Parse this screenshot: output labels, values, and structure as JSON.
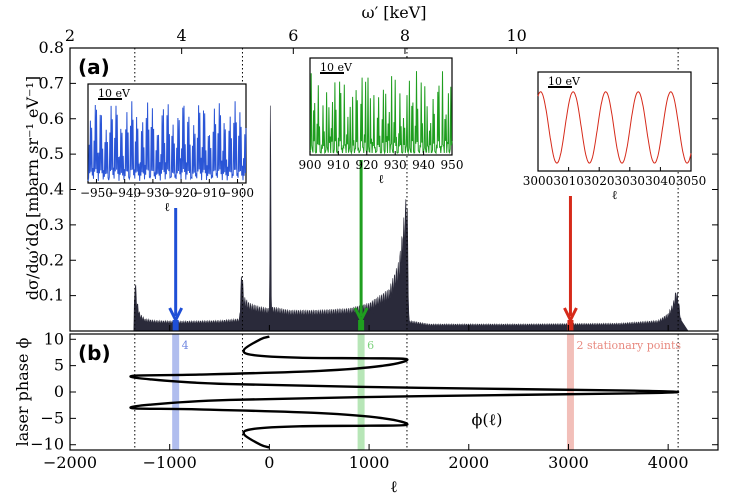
{
  "chart_data": {
    "type": "line",
    "panels": [
      {
        "label": "(a)",
        "xlim": [
          -2000,
          4500
        ],
        "ylim": [
          0,
          0.8
        ],
        "yticks": [
          0.1,
          0.2,
          0.3,
          0.4,
          0.5,
          0.6,
          0.7,
          0.8
        ],
        "ylabel": "dσ/dω′dΩ [mbarn sr⁻¹ eV⁻¹]",
        "xlabel_top": "ω′ [keV]",
        "top_ticks": [
          2,
          4,
          6,
          8,
          10
        ],
        "top_ticks_at_l": [
          -2000,
          -880,
          240,
          1360,
          2480
        ],
        "vertical_dotted_lines": [
          -1350,
          -270,
          1380,
          4100
        ],
        "spectrum_envelope": [
          [
            -1360,
            0
          ],
          [
            -1350,
            0.17
          ],
          [
            -1330,
            0.09
          ],
          [
            -1300,
            0.05
          ],
          [
            -1250,
            0.035
          ],
          [
            -1150,
            0.03
          ],
          [
            -900,
            0.028
          ],
          [
            -500,
            0.03
          ],
          [
            -300,
            0.035
          ],
          [
            -275,
            0.2
          ],
          [
            -260,
            0.1
          ],
          [
            -200,
            0.08
          ],
          [
            -100,
            0.07
          ],
          [
            0,
            0.065
          ],
          [
            10,
            0.775
          ],
          [
            20,
            0.07
          ],
          [
            200,
            0.06
          ],
          [
            500,
            0.06
          ],
          [
            800,
            0.065
          ],
          [
            1000,
            0.08
          ],
          [
            1200,
            0.12
          ],
          [
            1300,
            0.2
          ],
          [
            1360,
            0.35
          ],
          [
            1380,
            0.42
          ],
          [
            1400,
            0.03
          ],
          [
            1600,
            0.02
          ],
          [
            2500,
            0.02
          ],
          [
            3500,
            0.022
          ],
          [
            3900,
            0.03
          ],
          [
            4000,
            0.05
          ],
          [
            4050,
            0.08
          ],
          [
            4080,
            0.12
          ],
          [
            4100,
            0.1
          ],
          [
            4130,
            0.03
          ],
          [
            4200,
            0.0
          ]
        ],
        "arrows": [
          {
            "l": -940,
            "color": "#1f4fd6"
          },
          {
            "l": 920,
            "color": "#1f9e1f"
          },
          {
            "l": 3020,
            "color": "#d62a1a"
          }
        ],
        "insets": [
          {
            "color": "#2a55d6",
            "xticks": [
              -950,
              -940,
              -930,
              -920,
              -910,
              -900
            ],
            "tick_labels": [
              "−950",
              "−940",
              "−930",
              "−920",
              "−910",
              "−900"
            ],
            "xlim": [
              -953,
              -897
            ],
            "xlabel": "ℓ",
            "scalebar": "10 eV"
          },
          {
            "color": "#1f9e1f",
            "xticks": [
              900,
              910,
              920,
              930,
              940,
              950
            ],
            "tick_labels": [
              "900",
              "910",
              "920",
              "930",
              "940",
              "950"
            ],
            "xlim": [
              900,
              950
            ],
            "xlabel": "ℓ",
            "scalebar": "10 eV"
          },
          {
            "color": "#d62a1a",
            "xticks": [
              3000,
              3010,
              3020,
              3030,
              3040,
              3050
            ],
            "tick_labels": [
              "3000",
              "3010",
              "3020",
              "3030",
              "3040",
              "3050"
            ],
            "xlim": [
              3000,
              3050
            ],
            "xlabel": "ℓ",
            "scalebar": "10 eV"
          }
        ]
      },
      {
        "label": "(b)",
        "xlim": [
          -2000,
          4500
        ],
        "ylim": [
          -11,
          11
        ],
        "yticks": [
          -10,
          -5,
          0,
          5,
          10
        ],
        "ylabel": "laser phase ϕ",
        "xlabel": "ℓ",
        "xticks": [
          -2000,
          -1000,
          0,
          1000,
          2000,
          3000,
          4000
        ],
        "xtick_labels": [
          "−2000",
          "−1000",
          "0",
          "1000",
          "2000",
          "3000",
          "4000"
        ],
        "curve_label": "ϕ(ℓ)",
        "phase_curve": [
          [
            0,
            10.5
          ],
          [
            -90,
            10
          ],
          [
            -255,
            8.0
          ],
          [
            -160,
            7
          ],
          [
            300,
            6.5
          ],
          [
            1000,
            6.4
          ],
          [
            1380,
            6.2
          ],
          [
            1150,
            5.0
          ],
          [
            500,
            4.0
          ],
          [
            -700,
            3.3
          ],
          [
            -1360,
            3.1
          ],
          [
            -1200,
            2.4
          ],
          [
            -400,
            1.5
          ],
          [
            1500,
            0.8
          ],
          [
            3500,
            0.3
          ],
          [
            4100,
            0.0
          ],
          [
            3500,
            -0.3
          ],
          [
            1500,
            -0.8
          ],
          [
            -400,
            -1.5
          ],
          [
            -1200,
            -2.4
          ],
          [
            -1360,
            -3.1
          ],
          [
            -700,
            -3.3
          ],
          [
            500,
            -4.0
          ],
          [
            1150,
            -5.0
          ],
          [
            1380,
            -6.2
          ],
          [
            1000,
            -6.4
          ],
          [
            300,
            -6.5
          ],
          [
            -160,
            -7
          ],
          [
            -255,
            -8.0
          ],
          [
            -90,
            -10
          ],
          [
            0,
            -10.5
          ]
        ],
        "highlight_bands": [
          {
            "l": -940,
            "color": "#6f86e0",
            "label": "4"
          },
          {
            "l": 920,
            "color": "#7bd27b",
            "label": "6"
          },
          {
            "l": 3020,
            "color": "#e88a80",
            "label": "2 stationary points"
          }
        ]
      }
    ]
  }
}
